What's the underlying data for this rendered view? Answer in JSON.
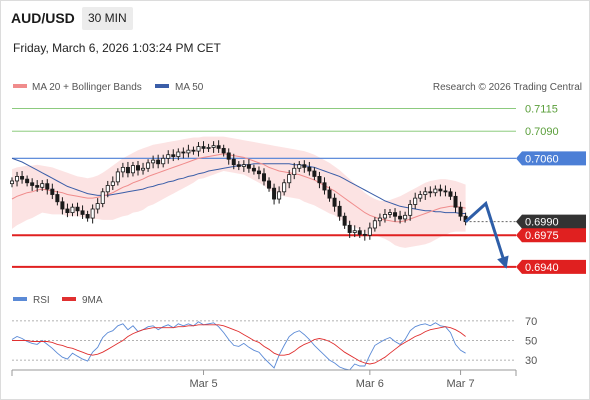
{
  "header": {
    "symbol": "AUD/USD",
    "timeframe": "30 MIN",
    "datetime": "Friday, March 6, 2026 1:03:24 PM CET"
  },
  "legend": {
    "ma20": "MA 20 + Bollinger Bands",
    "ma50": "MA 50",
    "copyright": "Research © 2026 Trading Central"
  },
  "colors": {
    "ma20": "#f08c8c",
    "ma50": "#3b5ea8",
    "bands": "#fbd9d9",
    "resistance_green": "#7cc36b",
    "resistance_blue": "#4c7fd6",
    "support_red": "#e02020",
    "current_price": "#333333",
    "candle": "#1a1a1a",
    "arrow": "#2e5ea8",
    "rsi": "#5b8ad6",
    "rsi_ma": "#e03030"
  },
  "chart_data": [
    {
      "type": "candlestick",
      "y_range": [
        0.692,
        0.713
      ],
      "levels": [
        {
          "name": "R3",
          "value": 0.7115,
          "label": "0.7115",
          "style": "green-thin"
        },
        {
          "name": "R2",
          "value": 0.709,
          "label": "0.7090",
          "style": "green-thin"
        },
        {
          "name": "R1",
          "value": 0.706,
          "label": "0.7060",
          "style": "blue-box"
        },
        {
          "name": "Last",
          "value": 0.699,
          "label": "0.6990",
          "style": "current"
        },
        {
          "name": "S1",
          "value": 0.6975,
          "label": "0.6975",
          "style": "red-box"
        },
        {
          "name": "S2",
          "value": 0.694,
          "label": "0.6940",
          "style": "red-box"
        }
      ],
      "x_labels": [
        {
          "label": "Mar 5",
          "index": 38
        },
        {
          "label": "Mar 6",
          "index": 71
        },
        {
          "label": "Mar 7",
          "index": 89
        }
      ],
      "close": [
        0.7035,
        0.704,
        0.7037,
        0.7033,
        0.703,
        0.7028,
        0.7032,
        0.7026,
        0.702,
        0.7012,
        0.7004,
        0.7,
        0.7006,
        0.7002,
        0.6998,
        0.6994,
        0.7004,
        0.701,
        0.7023,
        0.703,
        0.7034,
        0.7045,
        0.705,
        0.7044,
        0.7052,
        0.7047,
        0.7049,
        0.7055,
        0.7058,
        0.7054,
        0.706,
        0.7064,
        0.7062,
        0.7067,
        0.7066,
        0.7069,
        0.7068,
        0.7073,
        0.7071,
        0.7072,
        0.7074,
        0.7071,
        0.7066,
        0.7059,
        0.7053,
        0.7051,
        0.7053,
        0.7049,
        0.7046,
        0.7043,
        0.7035,
        0.7027,
        0.7015,
        0.7023,
        0.7033,
        0.7042,
        0.7049,
        0.7053,
        0.705,
        0.7046,
        0.704,
        0.7033,
        0.7025,
        0.7016,
        0.7007,
        0.6996,
        0.6986,
        0.6978,
        0.698,
        0.6976,
        0.6975,
        0.6983,
        0.6991,
        0.6994,
        0.6998,
        0.7,
        0.6996,
        0.6993,
        0.6997,
        0.7009,
        0.7016,
        0.702,
        0.7023,
        0.7022,
        0.7026,
        0.7024,
        0.7023,
        0.7018,
        0.7006,
        0.6996,
        0.699
      ],
      "ma20": [
        0.7015,
        0.7018,
        0.702,
        0.7022,
        0.7023,
        0.7025,
        0.7026,
        0.7025,
        0.7024,
        0.7023,
        0.7022,
        0.702,
        0.7019,
        0.7018,
        0.7017,
        0.7016,
        0.7016,
        0.7017,
        0.7018,
        0.702,
        0.7022,
        0.7025,
        0.7028,
        0.703,
        0.7033,
        0.7035,
        0.7037,
        0.704,
        0.7042,
        0.7044,
        0.7046,
        0.7048,
        0.705,
        0.7052,
        0.7054,
        0.7056,
        0.7058,
        0.706,
        0.7061,
        0.7062,
        0.7063,
        0.7064,
        0.7065,
        0.7064,
        0.7063,
        0.7062,
        0.7061,
        0.7059,
        0.7057,
        0.7055,
        0.7053,
        0.705,
        0.7048,
        0.7046,
        0.7045,
        0.7044,
        0.7043,
        0.7042,
        0.704,
        0.7038,
        0.7036,
        0.7033,
        0.703,
        0.7027,
        0.7024,
        0.702,
        0.7016,
        0.7012,
        0.7008,
        0.7004,
        0.7,
        0.6997,
        0.6995,
        0.6993,
        0.6992,
        0.6991,
        0.699,
        0.699,
        0.6991,
        0.6993,
        0.6995,
        0.6997,
        0.6999,
        0.7001,
        0.7003,
        0.7005,
        0.7006,
        0.7007,
        0.7007,
        0.7006,
        0.7005
      ],
      "bb_upper": [
        0.7048,
        0.705,
        0.7051,
        0.7052,
        0.7052,
        0.7053,
        0.7052,
        0.7051,
        0.705,
        0.7048,
        0.7046,
        0.7044,
        0.7042,
        0.704,
        0.7039,
        0.7038,
        0.7039,
        0.7041,
        0.7044,
        0.7048,
        0.7052,
        0.7056,
        0.706,
        0.7063,
        0.7066,
        0.7069,
        0.7071,
        0.7073,
        0.7075,
        0.7076,
        0.7077,
        0.7078,
        0.7079,
        0.708,
        0.7081,
        0.7082,
        0.7083,
        0.7083,
        0.7084,
        0.7084,
        0.7084,
        0.7084,
        0.7084,
        0.7083,
        0.7082,
        0.7081,
        0.708,
        0.7079,
        0.7078,
        0.7077,
        0.7076,
        0.7075,
        0.7074,
        0.7073,
        0.7072,
        0.7071,
        0.707,
        0.7069,
        0.7068,
        0.7066,
        0.7064,
        0.7061,
        0.7058,
        0.7055,
        0.7051,
        0.7047,
        0.7042,
        0.7037,
        0.7032,
        0.7027,
        0.7022,
        0.7018,
        0.7015,
        0.7013,
        0.7013,
        0.7014,
        0.7016,
        0.7018,
        0.7021,
        0.7024,
        0.7027,
        0.703,
        0.7033,
        0.7035,
        0.7036,
        0.7037,
        0.7037,
        0.7036,
        0.7035,
        0.7033,
        0.7031
      ],
      "bb_lower": [
        0.6982,
        0.6986,
        0.6989,
        0.6992,
        0.6994,
        0.6997,
        0.7,
        0.6999,
        0.6998,
        0.6998,
        0.6998,
        0.6996,
        0.6996,
        0.6996,
        0.6995,
        0.6994,
        0.6993,
        0.6993,
        0.6992,
        0.6992,
        0.6992,
        0.6994,
        0.6996,
        0.6997,
        0.7,
        0.7001,
        0.7003,
        0.7007,
        0.7009,
        0.7012,
        0.7015,
        0.7018,
        0.7021,
        0.7024,
        0.7027,
        0.703,
        0.7033,
        0.7037,
        0.7038,
        0.704,
        0.7042,
        0.7044,
        0.7046,
        0.7045,
        0.7044,
        0.7043,
        0.7042,
        0.7039,
        0.7036,
        0.7033,
        0.703,
        0.7025,
        0.7022,
        0.7019,
        0.7018,
        0.7017,
        0.7016,
        0.7015,
        0.7012,
        0.701,
        0.7008,
        0.7005,
        0.7002,
        0.6999,
        0.6997,
        0.6993,
        0.699,
        0.6987,
        0.6984,
        0.6981,
        0.6978,
        0.6976,
        0.6975,
        0.6973,
        0.6971,
        0.6968,
        0.6964,
        0.6962,
        0.6961,
        0.6962,
        0.6963,
        0.6964,
        0.6965,
        0.6967,
        0.697,
        0.6973,
        0.6975,
        0.6978,
        0.6979,
        0.6979,
        0.6979
      ],
      "ma50": [
        0.706,
        0.7058,
        0.7056,
        0.7053,
        0.705,
        0.7047,
        0.7044,
        0.7041,
        0.7038,
        0.7035,
        0.7032,
        0.7029,
        0.7027,
        0.7025,
        0.7023,
        0.7021,
        0.702,
        0.7019,
        0.7019,
        0.7019,
        0.702,
        0.7021,
        0.7022,
        0.7023,
        0.7024,
        0.7025,
        0.7026,
        0.7028,
        0.7029,
        0.7031,
        0.7032,
        0.7034,
        0.7035,
        0.7037,
        0.7038,
        0.704,
        0.7041,
        0.7043,
        0.7044,
        0.7046,
        0.7047,
        0.7048,
        0.7049,
        0.705,
        0.7051,
        0.7052,
        0.7053,
        0.7053,
        0.7054,
        0.7054,
        0.7054,
        0.7054,
        0.7054,
        0.7054,
        0.7054,
        0.7054,
        0.7053,
        0.7053,
        0.7052,
        0.7051,
        0.705,
        0.7048,
        0.7046,
        0.7044,
        0.7042,
        0.704,
        0.7037,
        0.7034,
        0.7031,
        0.7028,
        0.7025,
        0.7022,
        0.7019,
        0.7016,
        0.7013,
        0.7011,
        0.7009,
        0.7007,
        0.7006,
        0.7005,
        0.7004,
        0.7003,
        0.7002,
        0.7002,
        0.7001,
        0.7001,
        0.7,
        0.7,
        0.7,
        0.6999,
        0.6999
      ],
      "forecast_arrow": [
        {
          "index": 90,
          "value": 0.699
        },
        {
          "index": 94,
          "value": 0.701
        },
        {
          "index": 98,
          "value": 0.694
        }
      ]
    },
    {
      "type": "line",
      "legend": [
        "RSI",
        "9MA"
      ],
      "y_ticks": [
        70,
        50,
        30
      ],
      "y_range": [
        25,
        78
      ],
      "rsi": [
        51,
        54,
        52,
        49,
        47,
        46,
        50,
        46,
        42,
        37,
        33,
        31,
        37,
        34,
        31,
        29,
        38,
        43,
        53,
        58,
        60,
        65,
        67,
        61,
        65,
        59,
        61,
        64,
        65,
        61,
        64,
        66,
        63,
        67,
        65,
        67,
        65,
        69,
        66,
        67,
        68,
        64,
        58,
        51,
        45,
        44,
        47,
        43,
        40,
        38,
        32,
        27,
        22,
        35,
        45,
        54,
        58,
        60,
        56,
        51,
        45,
        40,
        35,
        30,
        27,
        23,
        21,
        20,
        26,
        24,
        24,
        35,
        45,
        48,
        51,
        53,
        49,
        46,
        51,
        60,
        64,
        66,
        67,
        65,
        68,
        65,
        64,
        58,
        46,
        40,
        37
      ],
      "ma9": [
        50,
        50,
        50,
        50,
        49,
        49,
        49,
        49,
        48,
        46,
        45,
        43,
        42,
        40,
        38,
        36,
        35,
        36,
        38,
        41,
        44,
        47,
        50,
        54,
        57,
        59,
        61,
        62,
        63,
        63,
        63,
        63,
        63,
        64,
        64,
        65,
        65,
        66,
        66,
        66,
        66,
        66,
        65,
        63,
        61,
        59,
        56,
        53,
        50,
        48,
        44,
        41,
        37,
        35,
        35,
        36,
        39,
        43,
        46,
        48,
        51,
        52,
        51,
        49,
        46,
        42,
        38,
        35,
        32,
        29,
        27,
        26,
        27,
        30,
        33,
        37,
        41,
        45,
        48,
        51,
        54,
        56,
        59,
        61,
        62,
        63,
        64,
        63,
        61,
        58,
        54
      ]
    }
  ]
}
